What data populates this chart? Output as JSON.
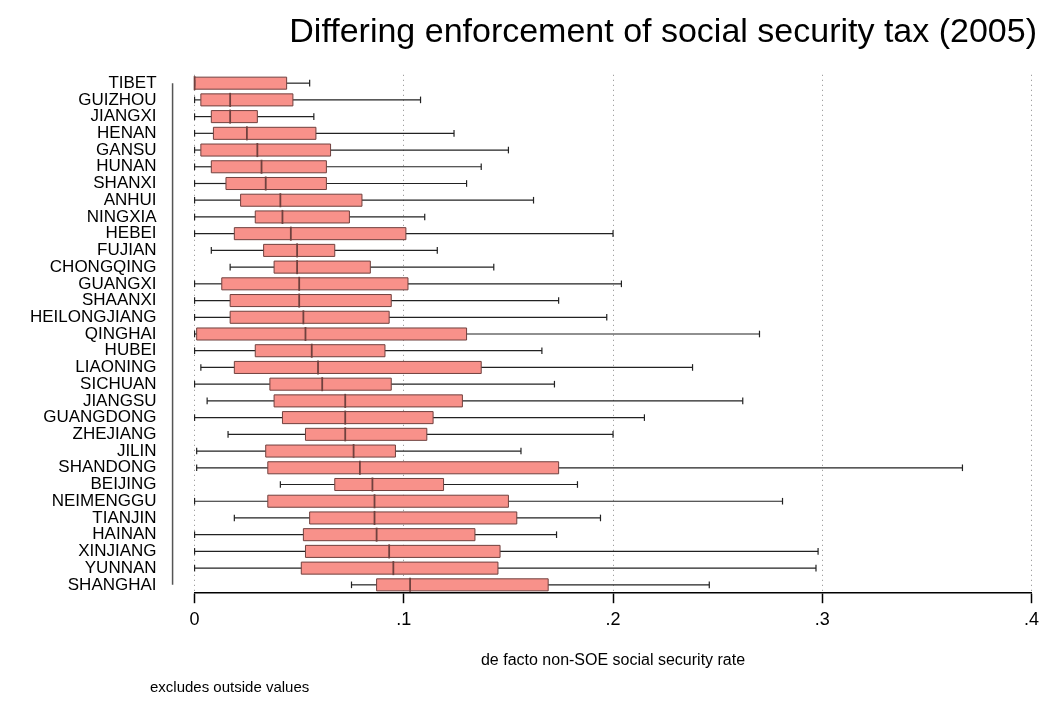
{
  "chart_data": {
    "type": "box",
    "orientation": "horizontal",
    "title": "Differing enforcement of social security tax (2005)",
    "xlabel": "de facto non-SOE social security rate",
    "annotations": [
      "excludes outside values"
    ],
    "color": "#f8918a",
    "grid": "x",
    "categories": [
      "TIBET",
      "GUIZHOU",
      "JIANGXI",
      "HENAN",
      "GANSU",
      "HUNAN",
      "SHANXI",
      "ANHUI",
      "NINGXIA",
      "HEBEI",
      "FUJIAN",
      "CHONGQING",
      "GUANGXI",
      "SHAANXI",
      "HEILONGJIANG",
      "QINGHAI",
      "HUBEI",
      "LIAONING",
      "SICHUAN",
      "JIANGSU",
      "GUANGDONG",
      "ZHEJIANG",
      "JILIN",
      "SHANDONG",
      "BEIJING",
      "NEIMENGGU",
      "TIANJIN",
      "HAINAN",
      "XINJIANG",
      "YUNNAN",
      "SHANGHAI"
    ],
    "boxes": [
      {
        "low": 0,
        "q1": 0,
        "median": 0,
        "q3": 0.044,
        "high": 0.055
      },
      {
        "low": 0,
        "q1": 0.003,
        "median": 0.017,
        "q3": 0.047,
        "high": 0.108
      },
      {
        "low": 0,
        "q1": 0.008,
        "median": 0.017,
        "q3": 0.03,
        "high": 0.057
      },
      {
        "low": 0,
        "q1": 0.009,
        "median": 0.025,
        "q3": 0.058,
        "high": 0.124
      },
      {
        "low": 0,
        "q1": 0.003,
        "median": 0.03,
        "q3": 0.065,
        "high": 0.15
      },
      {
        "low": 0,
        "q1": 0.008,
        "median": 0.032,
        "q3": 0.063,
        "high": 0.137
      },
      {
        "low": 0,
        "q1": 0.015,
        "median": 0.034,
        "q3": 0.063,
        "high": 0.13
      },
      {
        "low": 0,
        "q1": 0.022,
        "median": 0.041,
        "q3": 0.08,
        "high": 0.162
      },
      {
        "low": 0,
        "q1": 0.029,
        "median": 0.042,
        "q3": 0.074,
        "high": 0.11
      },
      {
        "low": 0,
        "q1": 0.019,
        "median": 0.046,
        "q3": 0.101,
        "high": 0.2
      },
      {
        "low": 0.008,
        "q1": 0.033,
        "median": 0.049,
        "q3": 0.067,
        "high": 0.116
      },
      {
        "low": 0.017,
        "q1": 0.038,
        "median": 0.049,
        "q3": 0.084,
        "high": 0.143
      },
      {
        "low": 0,
        "q1": 0.013,
        "median": 0.05,
        "q3": 0.102,
        "high": 0.204
      },
      {
        "low": 0,
        "q1": 0.017,
        "median": 0.05,
        "q3": 0.094,
        "high": 0.174
      },
      {
        "low": 0,
        "q1": 0.017,
        "median": 0.052,
        "q3": 0.093,
        "high": 0.197
      },
      {
        "low": 0,
        "q1": 0.001,
        "median": 0.053,
        "q3": 0.13,
        "high": 0.27
      },
      {
        "low": 0,
        "q1": 0.029,
        "median": 0.056,
        "q3": 0.091,
        "high": 0.166
      },
      {
        "low": 0.003,
        "q1": 0.019,
        "median": 0.059,
        "q3": 0.137,
        "high": 0.238
      },
      {
        "low": 0,
        "q1": 0.036,
        "median": 0.061,
        "q3": 0.094,
        "high": 0.172
      },
      {
        "low": 0.006,
        "q1": 0.038,
        "median": 0.072,
        "q3": 0.128,
        "high": 0.262
      },
      {
        "low": 0,
        "q1": 0.042,
        "median": 0.072,
        "q3": 0.114,
        "high": 0.215
      },
      {
        "low": 0.016,
        "q1": 0.053,
        "median": 0.072,
        "q3": 0.111,
        "high": 0.2
      },
      {
        "low": 0.001,
        "q1": 0.034,
        "median": 0.076,
        "q3": 0.096,
        "high": 0.156
      },
      {
        "low": 0.001,
        "q1": 0.035,
        "median": 0.079,
        "q3": 0.174,
        "high": 0.367
      },
      {
        "low": 0.041,
        "q1": 0.067,
        "median": 0.085,
        "q3": 0.119,
        "high": 0.183
      },
      {
        "low": 0,
        "q1": 0.035,
        "median": 0.086,
        "q3": 0.15,
        "high": 0.281
      },
      {
        "low": 0.019,
        "q1": 0.055,
        "median": 0.086,
        "q3": 0.154,
        "high": 0.194
      },
      {
        "low": 0,
        "q1": 0.052,
        "median": 0.087,
        "q3": 0.134,
        "high": 0.173
      },
      {
        "low": 0,
        "q1": 0.053,
        "median": 0.093,
        "q3": 0.146,
        "high": 0.298
      },
      {
        "low": 0,
        "q1": 0.051,
        "median": 0.095,
        "q3": 0.145,
        "high": 0.297
      },
      {
        "low": 0.075,
        "q1": 0.087,
        "median": 0.103,
        "q3": 0.169,
        "high": 0.246
      }
    ],
    "xlim": [
      0,
      0.4
    ],
    "xticks": [
      0,
      {
        "value": 0.1,
        "label": ".1"
      },
      {
        "value": 0.2,
        "label": ".2"
      },
      {
        "value": 0.3,
        "label": ".3"
      },
      {
        "value": 0.4,
        "label": ".4"
      }
    ]
  }
}
